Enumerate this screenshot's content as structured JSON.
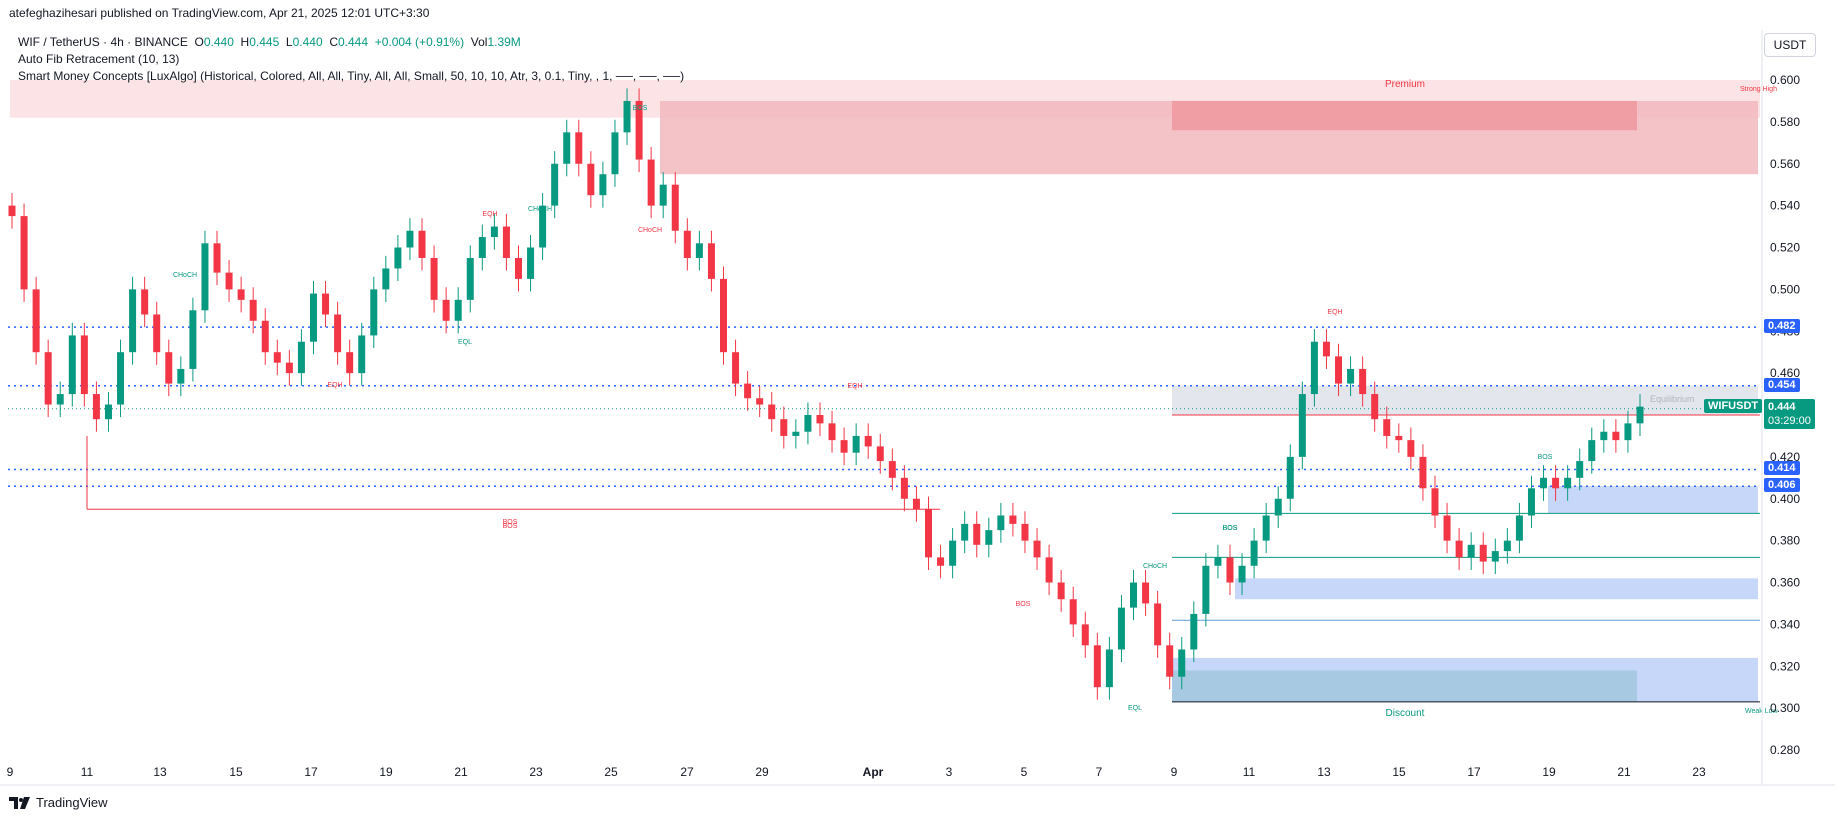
{
  "publish_line": "atefeghazihesari published on TradingView.com, Apr 21, 2025 12:01 UTC+3:30",
  "legend": {
    "symbol": "WIF / TetherUS · 4h · BINANCE",
    "o_label": "O",
    "o": "0.440",
    "h_label": "H",
    "h": "0.445",
    "l_label": "L",
    "l": "0.440",
    "c_label": "C",
    "c": "0.444",
    "change": "+0.004 (+0.91%)",
    "vol_label": "Vol",
    "vol": "1.39M",
    "indicator1": "Auto Fib Retracement (10, 13)",
    "indicator2": "Smart Money Concepts [LuxAlgo] (Historical, Colored, All, All, Tiny, All, All, Small, 50, 10, 10, Atr, 3, 0.1, Tiny, , 1, ──, ──, ──)"
  },
  "currency": "USDT",
  "brand": "TradingView",
  "colors": {
    "up": "#089981",
    "down": "#f23645",
    "blue": "#2962ff",
    "premium": "#f7c6c9",
    "discount": "#c7d7fa"
  },
  "chart_data": {
    "type": "candlestick",
    "title": "WIF / TetherUS · 4h · BINANCE",
    "ylim": [
      0.27,
      0.61
    ],
    "y_ticks": [
      "0.600",
      "0.580",
      "0.560",
      "0.540",
      "0.520",
      "0.500",
      "0.480",
      "0.460",
      "0.440",
      "0.420",
      "0.400",
      "0.380",
      "0.360",
      "0.340",
      "0.320",
      "0.300",
      "0.280"
    ],
    "x_ticks": [
      "9",
      "11",
      "13",
      "15",
      "17",
      "19",
      "21",
      "23",
      "25",
      "27",
      "29",
      "Apr",
      "3",
      "5",
      "7",
      "9",
      "11",
      "13",
      "15",
      "17",
      "19",
      "21",
      "23"
    ],
    "price_labels": [
      {
        "text": "0.482",
        "value": 0.482,
        "color": "#2962ff"
      },
      {
        "text": "0.454",
        "value": 0.454,
        "color": "#2962ff"
      },
      {
        "text": "0.414",
        "value": 0.414,
        "color": "#2962ff"
      },
      {
        "text": "0.406",
        "value": 0.406,
        "color": "#2962ff"
      }
    ],
    "last_price": {
      "symbol": "WIFUSDT",
      "value": "0.444",
      "countdown": "03:29:00",
      "price": 0.444
    },
    "horizontal_levels": [
      0.482,
      0.454,
      0.414,
      0.406,
      0.443
    ],
    "zones": [
      {
        "label": "Premium",
        "from": 0.58,
        "to": 0.6
      },
      {
        "label": "Equilibrium",
        "value": 0.442
      },
      {
        "label": "Discount",
        "from": 0.303,
        "to": 0.323
      },
      {
        "label": "Strong High",
        "value": 0.595
      },
      {
        "label": "Weak Low",
        "value": 0.3
      }
    ],
    "structure_labels": [
      "BOS",
      "CHoCH",
      "EQH",
      "EQL",
      "BOS",
      "CHoCH",
      "EQH",
      "CHoCH",
      "BOS",
      "EQH",
      "BOS",
      "BOS",
      "CHoCH",
      "BOS",
      "EQL",
      "EQH",
      "BOS"
    ],
    "series_close_path": [
      0.535,
      0.5,
      0.47,
      0.445,
      0.45,
      0.478,
      0.45,
      0.438,
      0.445,
      0.47,
      0.5,
      0.488,
      0.47,
      0.455,
      0.462,
      0.49,
      0.522,
      0.508,
      0.5,
      0.495,
      0.485,
      0.47,
      0.465,
      0.46,
      0.475,
      0.498,
      0.488,
      0.47,
      0.46,
      0.478,
      0.5,
      0.51,
      0.52,
      0.528,
      0.515,
      0.495,
      0.485,
      0.495,
      0.515,
      0.525,
      0.53,
      0.515,
      0.505,
      0.52,
      0.54,
      0.56,
      0.575,
      0.56,
      0.545,
      0.555,
      0.575,
      0.59,
      0.562,
      0.54,
      0.55,
      0.528,
      0.515,
      0.522,
      0.505,
      0.47,
      0.455,
      0.448,
      0.445,
      0.438,
      0.43,
      0.432,
      0.44,
      0.436,
      0.428,
      0.422,
      0.43,
      0.425,
      0.418,
      0.41,
      0.4,
      0.395,
      0.372,
      0.368,
      0.38,
      0.388,
      0.378,
      0.385,
      0.392,
      0.388,
      0.38,
      0.372,
      0.36,
      0.352,
      0.34,
      0.33,
      0.31,
      0.328,
      0.348,
      0.36,
      0.35,
      0.33,
      0.315,
      0.328,
      0.345,
      0.368,
      0.372,
      0.36,
      0.368,
      0.38,
      0.392,
      0.4,
      0.42,
      0.45,
      0.475,
      0.468,
      0.455,
      0.462,
      0.45,
      0.438,
      0.43,
      0.428,
      0.42,
      0.405,
      0.392,
      0.38,
      0.372,
      0.378,
      0.37,
      0.375,
      0.38,
      0.392,
      0.405,
      0.41,
      0.405,
      0.41,
      0.418,
      0.428,
      0.432,
      0.428,
      0.436,
      0.444
    ]
  }
}
